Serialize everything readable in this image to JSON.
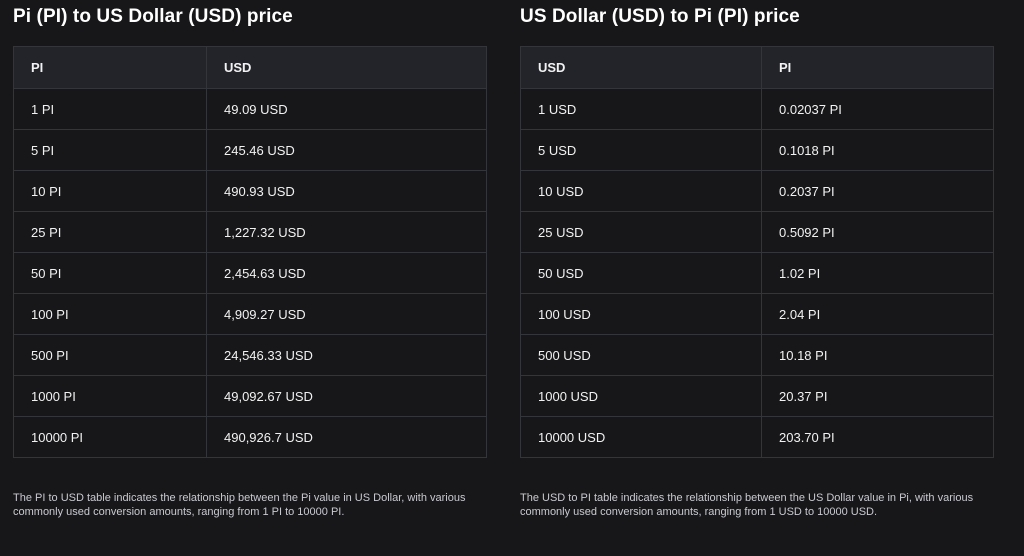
{
  "left": {
    "title": "Pi (PI) to US Dollar (USD) price",
    "headers": [
      "PI",
      "USD"
    ],
    "rows": [
      [
        "1 PI",
        "49.09 USD"
      ],
      [
        "5 PI",
        "245.46 USD"
      ],
      [
        "10 PI",
        "490.93 USD"
      ],
      [
        "25 PI",
        "1,227.32 USD"
      ],
      [
        "50 PI",
        "2,454.63 USD"
      ],
      [
        "100 PI",
        "4,909.27 USD"
      ],
      [
        "500 PI",
        "24,546.33 USD"
      ],
      [
        "1000 PI",
        "49,092.67 USD"
      ],
      [
        "10000 PI",
        "490,926.7 USD"
      ]
    ],
    "note": "The PI to USD table indicates the relationship between the Pi value in US Dollar, with various commonly used conversion amounts, ranging from 1 PI to 10000 PI."
  },
  "right": {
    "title": "US Dollar (USD) to Pi (PI) price",
    "headers": [
      "USD",
      "PI"
    ],
    "rows": [
      [
        "1 USD",
        "0.02037 PI"
      ],
      [
        "5 USD",
        "0.1018 PI"
      ],
      [
        "10 USD",
        "0.2037 PI"
      ],
      [
        "25 USD",
        "0.5092 PI"
      ],
      [
        "50 USD",
        "1.02 PI"
      ],
      [
        "100 USD",
        "2.04 PI"
      ],
      [
        "500 USD",
        "10.18 PI"
      ],
      [
        "1000 USD",
        "20.37 PI"
      ],
      [
        "10000 USD",
        "203.70 PI"
      ]
    ],
    "note": "The USD to PI table indicates the relationship between the US Dollar value in Pi, with various commonly used conversion amounts, ranging from 1 USD to 10000 USD."
  }
}
